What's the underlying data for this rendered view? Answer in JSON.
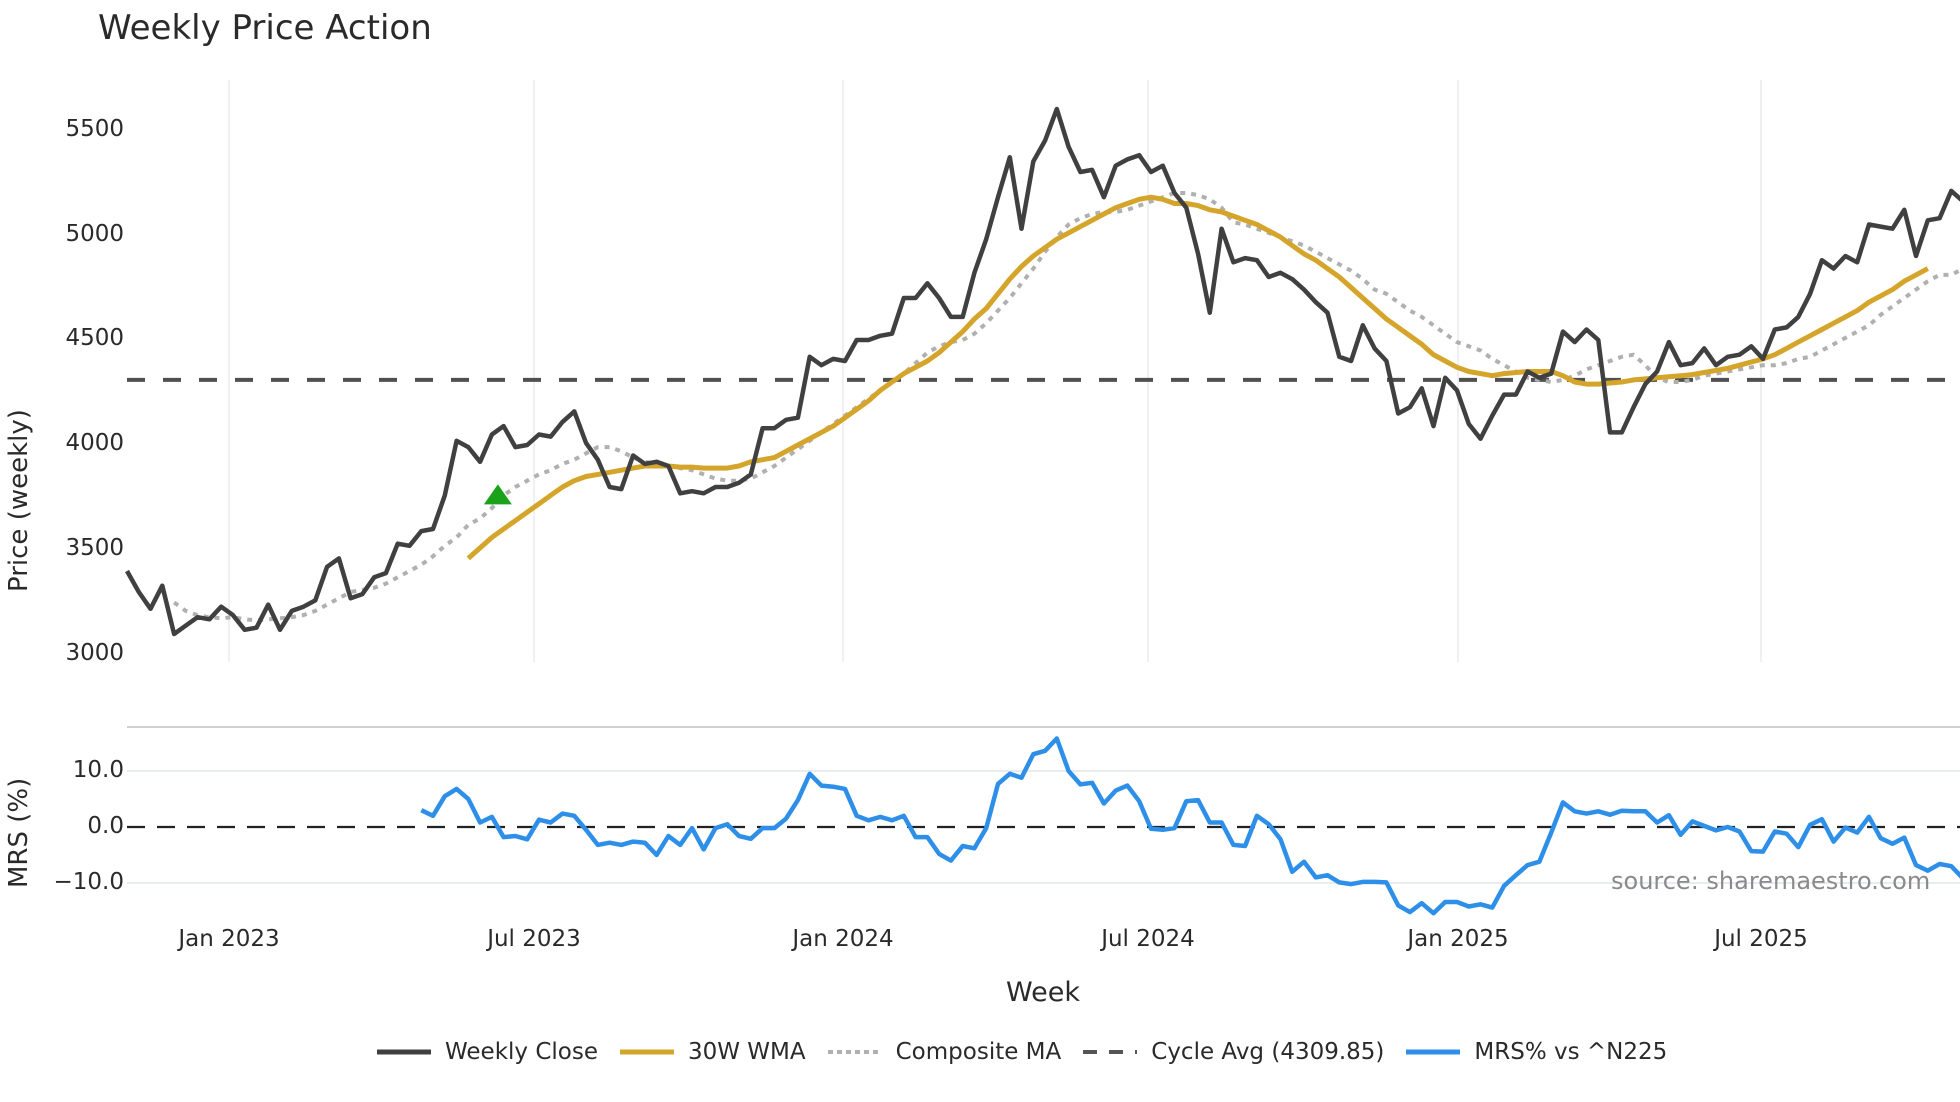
{
  "title": "Weekly Price Action",
  "source": "source: sharemaestro.com",
  "axes": {
    "price_ylabel": "Price (weekly)",
    "mrs_ylabel": "MRS (%)",
    "xlabel": "Week",
    "price_ticks": [
      "3000",
      "3500",
      "4000",
      "4500",
      "5000",
      "5500"
    ],
    "mrs_ticks": [
      "−10.0",
      "0.0",
      "10.0"
    ],
    "x_ticks": [
      "Jan 2023",
      "Jul 2023",
      "Jan 2024",
      "Jul 2024",
      "Jan 2025",
      "Jul 2025"
    ]
  },
  "legend": [
    {
      "label": "Weekly Close",
      "color": "#404040",
      "style": "solid"
    },
    {
      "label": "30W WMA",
      "color": "#d4a52a",
      "style": "solid"
    },
    {
      "label": "Composite MA",
      "color": "#b0b0b0",
      "style": "dotted"
    },
    {
      "label": "Cycle Avg (4309.85)",
      "color": "#555555",
      "style": "dashed"
    },
    {
      "label": "MRS% vs ^N225",
      "color": "#2e8fe8",
      "style": "solid"
    }
  ],
  "colors": {
    "close": "#404040",
    "wma": "#d4a52a",
    "composite": "#b0b0b0",
    "cycle": "#505050",
    "mrs": "#2e8fe8",
    "signal": "#1aa31a",
    "grid": "#e8ecf0"
  },
  "chart_data": [
    {
      "type": "line",
      "title": "Weekly Price Action",
      "xlabel": "Week",
      "ylabel": "Price (weekly)",
      "ylim": [
        2970,
        5700
      ],
      "x_start_week": "Nov 2022",
      "x_tick_labels": [
        "Jan 2023",
        "Jul 2023",
        "Jan 2024",
        "Jul 2024",
        "Jan 2025",
        "Jul 2025"
      ],
      "y_ticks": [
        3000,
        3500,
        4000,
        4500,
        5000,
        5500
      ],
      "grid": true,
      "legend_position": "bottom",
      "cycle_avg": 4309.85,
      "signal_marker": {
        "type": "buy-triangle",
        "week_index": 31,
        "value": 3760
      },
      "series": [
        {
          "name": "Weekly Close",
          "values": [
            3400,
            3300,
            3220,
            3330,
            3100,
            3140,
            3180,
            3170,
            3230,
            3190,
            3120,
            3130,
            3240,
            3120,
            3210,
            3230,
            3260,
            3420,
            3460,
            3270,
            3290,
            3370,
            3390,
            3530,
            3520,
            3590,
            3600,
            3760,
            4020,
            3990,
            3920,
            4050,
            4090,
            3990,
            4000,
            4050,
            4040,
            4110,
            4160,
            4010,
            3930,
            3800,
            3790,
            3950,
            3910,
            3920,
            3900,
            3770,
            3780,
            3770,
            3800,
            3800,
            3820,
            3860,
            4080,
            4080,
            4120,
            4130,
            4420,
            4380,
            4410,
            4400,
            4500,
            4500,
            4520,
            4530,
            4700,
            4700,
            4770,
            4700,
            4610,
            4610,
            4820,
            4980,
            5180,
            5370,
            5030,
            5350,
            5450,
            5600,
            5420,
            5300,
            5310,
            5180,
            5330,
            5360,
            5380,
            5300,
            5330,
            5200,
            5130,
            4910,
            4630,
            5030,
            4870,
            4890,
            4880,
            4800,
            4820,
            4790,
            4740,
            4680,
            4630,
            4420,
            4400,
            4570,
            4460,
            4400,
            4150,
            4180,
            4270,
            4090,
            4320,
            4260,
            4100,
            4030,
            4140,
            4240,
            4240,
            4350,
            4320,
            4340,
            4540,
            4490,
            4550,
            4500,
            4060,
            4060,
            4180,
            4290,
            4350,
            4490,
            4380,
            4390,
            4460,
            4380,
            4420,
            4430,
            4470,
            4410,
            4550,
            4560,
            4610,
            4720,
            4880,
            4840,
            4900,
            4870,
            5050,
            5040,
            5030,
            5120,
            4900,
            5070,
            5080,
            5210,
            5160
          ]
        },
        {
          "name": "Composite MA",
          "start_index": 4,
          "values": [
            3250,
            3210,
            3190,
            3180,
            3175,
            3180,
            3170,
            3165,
            3170,
            3175,
            3180,
            3190,
            3210,
            3240,
            3270,
            3300,
            3310,
            3320,
            3340,
            3370,
            3400,
            3430,
            3470,
            3520,
            3560,
            3620,
            3650,
            3700,
            3760,
            3800,
            3830,
            3860,
            3880,
            3910,
            3930,
            3960,
            3990,
            3990,
            3970,
            3940,
            3920,
            3910,
            3900,
            3890,
            3880,
            3860,
            3840,
            3830,
            3830,
            3840,
            3870,
            3900,
            3940,
            3980,
            4020,
            4060,
            4100,
            4140,
            4180,
            4220,
            4260,
            4300,
            4340,
            4390,
            4440,
            4470,
            4490,
            4500,
            4530,
            4580,
            4640,
            4700,
            4770,
            4840,
            4920,
            4990,
            5050,
            5080,
            5100,
            5110,
            5110,
            5120,
            5140,
            5160,
            5180,
            5200,
            5200,
            5190,
            5170,
            5130,
            5060,
            5050,
            5030,
            5010,
            4990,
            4970,
            4950,
            4920,
            4890,
            4860,
            4830,
            4790,
            4740,
            4720,
            4680,
            4640,
            4610,
            4570,
            4530,
            4490,
            4470,
            4450,
            4410,
            4380,
            4350,
            4320,
            4310,
            4300,
            4310,
            4330,
            4360,
            4380,
            4400,
            4420,
            4430,
            4380,
            4320,
            4300,
            4300,
            4310,
            4330,
            4340,
            4350,
            4360,
            4370,
            4380,
            4380,
            4390,
            4410,
            4420,
            4450,
            4480,
            4510,
            4540,
            4570,
            4620,
            4660,
            4700,
            4740,
            4780,
            4810,
            4810,
            4840,
            4870,
            4920
          ]
        },
        {
          "name": "30W WMA",
          "start_index": 29,
          "values": [
            3460,
            3510,
            3560,
            3600,
            3640,
            3680,
            3720,
            3760,
            3800,
            3830,
            3850,
            3860,
            3870,
            3880,
            3890,
            3900,
            3900,
            3900,
            3895,
            3895,
            3890,
            3890,
            3890,
            3900,
            3920,
            3930,
            3940,
            3970,
            4000,
            4030,
            4060,
            4090,
            4130,
            4170,
            4210,
            4260,
            4300,
            4340,
            4370,
            4400,
            4440,
            4490,
            4540,
            4600,
            4650,
            4720,
            4790,
            4850,
            4900,
            4940,
            4980,
            5010,
            5040,
            5070,
            5100,
            5130,
            5150,
            5170,
            5180,
            5170,
            5150,
            5150,
            5140,
            5120,
            5110,
            5090,
            5070,
            5050,
            5020,
            4990,
            4950,
            4910,
            4880,
            4840,
            4800,
            4750,
            4700,
            4650,
            4600,
            4560,
            4520,
            4480,
            4430,
            4400,
            4370,
            4350,
            4340,
            4330,
            4340,
            4345,
            4350,
            4350,
            4350,
            4330,
            4300,
            4290,
            4290,
            4295,
            4300,
            4310,
            4315,
            4320,
            4325,
            4330,
            4335,
            4345,
            4355,
            4365,
            4380,
            4395,
            4410,
            4430,
            4460,
            4490,
            4520,
            4550,
            4580,
            4610,
            4640,
            4680,
            4710,
            4740,
            4780,
            4810,
            4840
          ]
        },
        {
          "name": "Cycle Avg (4309.85)",
          "constant": 4309.85
        }
      ]
    },
    {
      "type": "line",
      "xlabel": "Week",
      "ylabel": "MRS (%)",
      "ylim": [
        -17.5,
        16.5
      ],
      "y_ticks": [
        -10.0,
        0.0,
        10.0
      ],
      "reference_line": 0.0,
      "grid": true,
      "series": [
        {
          "name": "MRS% vs ^N225",
          "start_index": 25,
          "values": [
            3.0,
            2.0,
            5.5,
            6.8,
            5.0,
            0.8,
            1.8,
            -1.8,
            -1.6,
            -2.2,
            1.3,
            0.8,
            2.4,
            2.0,
            -0.5,
            -3.2,
            -2.8,
            -3.2,
            -2.6,
            -2.8,
            -5.0,
            -1.6,
            -3.2,
            -0.2,
            -4.0,
            -0.2,
            0.5,
            -1.6,
            -2.1,
            -0.2,
            -0.2,
            1.5,
            4.8,
            9.5,
            7.4,
            7.2,
            6.8,
            2.0,
            1.2,
            1.8,
            1.2,
            2.0,
            -1.8,
            -1.8,
            -4.8,
            -6.0,
            -3.4,
            -3.8,
            -0.2,
            7.7,
            9.5,
            8.8,
            13.0,
            13.6,
            15.8,
            10.0,
            7.6,
            7.9,
            4.2,
            6.5,
            7.4,
            4.6,
            -0.3,
            -0.5,
            -0.2,
            4.6,
            4.8,
            0.8,
            0.8,
            -3.2,
            -3.4,
            2.0,
            0.5,
            -2.2,
            -8.0,
            -6.2,
            -9.0,
            -8.6,
            -9.9,
            -10.2,
            -9.8,
            -9.8,
            -9.9,
            -14.0,
            -15.2,
            -13.6,
            -15.4,
            -13.4,
            -13.4,
            -14.2,
            -13.8,
            -14.4,
            -10.5,
            -8.6,
            -6.8,
            -6.2,
            -1.0,
            4.4,
            2.8,
            2.4,
            2.8,
            2.2,
            2.9,
            2.8,
            2.8,
            0.8,
            2.1,
            -1.4,
            1.0,
            0.2,
            -0.6,
            0.0,
            -0.8,
            -4.3,
            -4.4,
            -0.8,
            -1.2,
            -3.6,
            0.4,
            1.4,
            -2.6,
            -0.1,
            -1.0,
            1.8,
            -2.0,
            -3.0,
            -1.9,
            -6.8,
            -7.8,
            -6.6,
            -7.0,
            -9.2
          ]
        }
      ]
    }
  ]
}
